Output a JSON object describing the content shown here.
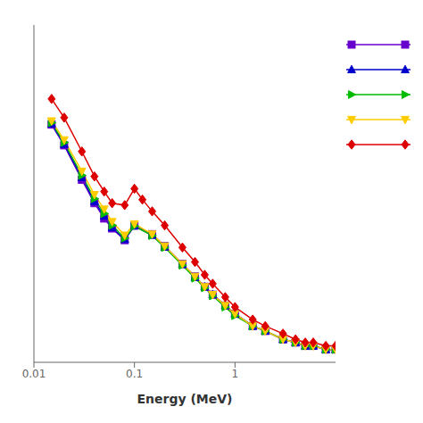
{
  "chart_data": {
    "type": "line",
    "x_label": "Energy (MeV)",
    "log": true,
    "xlim": [
      0.01,
      10.0
    ],
    "xticks": [
      0.01,
      0.1,
      1
    ],
    "ylim": [
      0.01,
      10
    ],
    "yticks": [
      0.01,
      0.1,
      1,
      10
    ],
    "tick_labels": "x",
    "grid": false,
    "legend": "right",
    "series": [
      {
        "color": "#6600cc",
        "marker": "square",
        "x": [
          0.015,
          0.02,
          0.03,
          0.04,
          0.05,
          0.06,
          0.08,
          0.1,
          0.15,
          0.2,
          0.3,
          0.4,
          0.5,
          0.6,
          0.8,
          1.0,
          1.5,
          2.0,
          3.0,
          4.0,
          5.0,
          6.0,
          8.0,
          10.0
        ],
        "values": [
          1.3,
          0.85,
          0.42,
          0.26,
          0.19,
          0.155,
          0.122,
          0.165,
          0.138,
          0.108,
          0.075,
          0.058,
          0.047,
          0.04,
          0.032,
          0.027,
          0.021,
          0.019,
          0.016,
          0.015,
          0.014,
          0.014,
          0.013,
          0.013
        ]
      },
      {
        "color": "#0000cc",
        "marker": "triangle-up",
        "x": [
          0.015,
          0.02,
          0.03,
          0.04,
          0.05,
          0.06,
          0.08,
          0.1,
          0.15,
          0.2,
          0.3,
          0.4,
          0.5,
          0.6,
          0.8,
          1.0,
          1.5,
          2.0,
          3.0,
          4.0,
          5.0,
          6.0,
          8.0,
          10.0
        ],
        "values": [
          1.32,
          0.87,
          0.44,
          0.27,
          0.2,
          0.158,
          0.124,
          0.163,
          0.135,
          0.106,
          0.074,
          0.057,
          0.047,
          0.04,
          0.032,
          0.027,
          0.021,
          0.019,
          0.016,
          0.015,
          0.014,
          0.014,
          0.013,
          0.013
        ]
      },
      {
        "color": "#00bb00",
        "marker": "triangle-right",
        "x": [
          0.015,
          0.02,
          0.03,
          0.04,
          0.05,
          0.06,
          0.08,
          0.1,
          0.15,
          0.2,
          0.3,
          0.4,
          0.5,
          0.6,
          0.8,
          1.0,
          1.5,
          2.0,
          3.0,
          4.0,
          5.0,
          6.0,
          8.0,
          10.0
        ],
        "values": [
          1.35,
          0.9,
          0.46,
          0.285,
          0.21,
          0.165,
          0.127,
          0.163,
          0.134,
          0.105,
          0.073,
          0.056,
          0.046,
          0.039,
          0.031,
          0.026,
          0.021,
          0.019,
          0.016,
          0.015,
          0.014,
          0.014,
          0.013,
          0.013
        ]
      },
      {
        "color": "#ffcc00",
        "marker": "triangle-down",
        "x": [
          0.015,
          0.02,
          0.03,
          0.04,
          0.05,
          0.06,
          0.08,
          0.1,
          0.15,
          0.2,
          0.3,
          0.4,
          0.5,
          0.6,
          0.8,
          1.0,
          1.5,
          2.0,
          3.0,
          4.0,
          5.0,
          6.0,
          8.0,
          10.0
        ],
        "values": [
          1.4,
          0.95,
          0.5,
          0.31,
          0.23,
          0.178,
          0.135,
          0.17,
          0.138,
          0.108,
          0.075,
          0.058,
          0.047,
          0.04,
          0.032,
          0.027,
          0.021,
          0.019,
          0.016,
          0.015,
          0.014,
          0.014,
          0.013,
          0.013
        ]
      },
      {
        "color": "#dd0000",
        "marker": "diamond",
        "x": [
          0.015,
          0.02,
          0.03,
          0.04,
          0.05,
          0.06,
          0.08,
          0.1,
          0.12,
          0.15,
          0.2,
          0.3,
          0.4,
          0.5,
          0.6,
          0.8,
          1.0,
          1.5,
          2.0,
          3.0,
          4.0,
          5.0,
          6.0,
          8.0,
          10.0
        ],
        "values": [
          2.2,
          1.5,
          0.75,
          0.45,
          0.33,
          0.26,
          0.25,
          0.35,
          0.28,
          0.22,
          0.165,
          0.105,
          0.078,
          0.06,
          0.05,
          0.038,
          0.031,
          0.024,
          0.021,
          0.018,
          0.016,
          0.015,
          0.015,
          0.014,
          0.014
        ]
      }
    ]
  }
}
